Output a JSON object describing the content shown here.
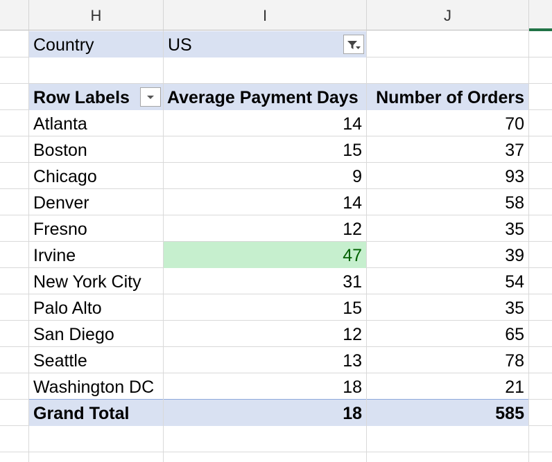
{
  "columns": [
    "H",
    "I",
    "J"
  ],
  "filter": {
    "label": "Country",
    "value": "US"
  },
  "pivot": {
    "headers": {
      "row_labels": "Row Labels",
      "avg_days": "Average Payment Days",
      "orders": "Number of Orders"
    },
    "rows": [
      {
        "city": "Atlanta",
        "days": "14",
        "orders": "70"
      },
      {
        "city": "Boston",
        "days": "15",
        "orders": "37"
      },
      {
        "city": "Chicago",
        "days": "9",
        "orders": "93"
      },
      {
        "city": "Denver",
        "days": "14",
        "orders": "58"
      },
      {
        "city": "Fresno",
        "days": "12",
        "orders": "35"
      },
      {
        "city": "Irvine",
        "days": "47",
        "orders": "39"
      },
      {
        "city": "New York City",
        "days": "31",
        "orders": "54"
      },
      {
        "city": "Palo Alto",
        "days": "15",
        "orders": "35"
      },
      {
        "city": "San Diego",
        "days": "12",
        "orders": "65"
      },
      {
        "city": "Seattle",
        "days": "13",
        "orders": "78"
      },
      {
        "city": "Washington DC",
        "days": "18",
        "orders": "21"
      }
    ],
    "grand_total": {
      "label": "Grand Total",
      "days": "18",
      "orders": "585"
    }
  },
  "colors": {
    "header_band": "#d9e1f2",
    "highlight_fill": "#c6efce",
    "highlight_text": "#006100",
    "selection": "#217346"
  }
}
